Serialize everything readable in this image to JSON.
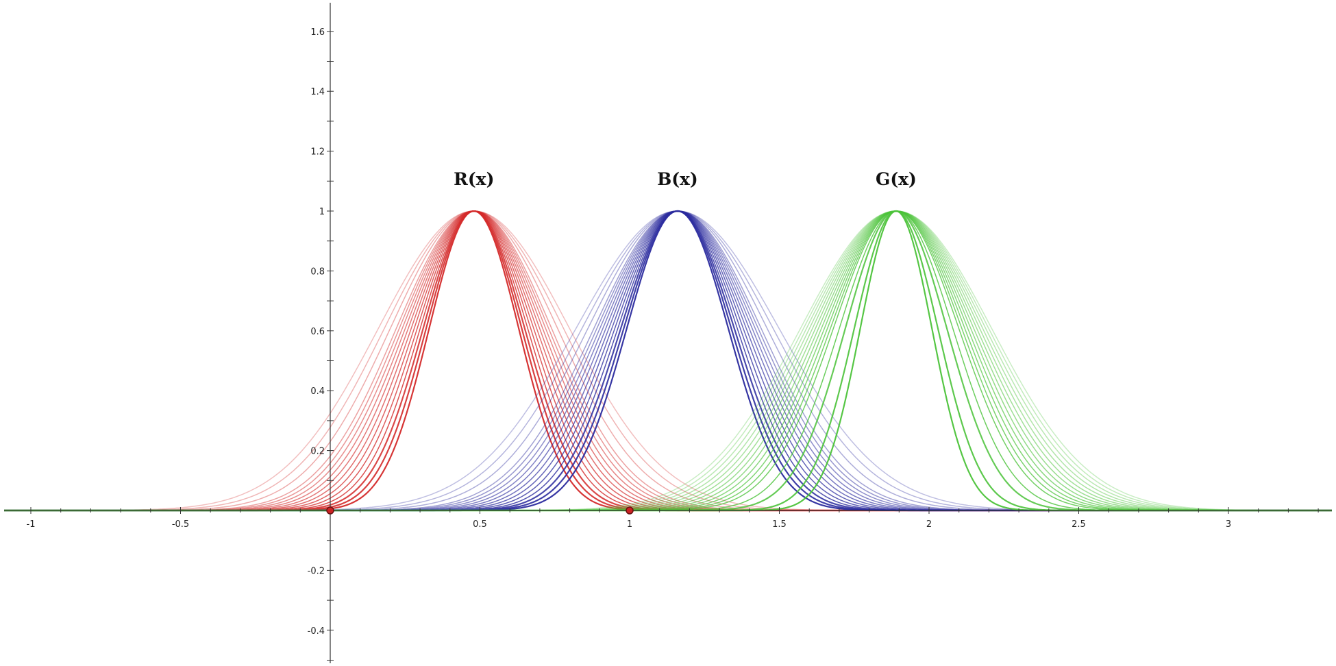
{
  "chart_data": {
    "type": "line",
    "title": "",
    "xlabel": "",
    "ylabel": "",
    "xlim": [
      -1.1,
      3.55
    ],
    "ylim": [
      -0.5,
      1.7
    ],
    "grid": false,
    "x_ticks": [
      -1,
      -0.5,
      0.5,
      1,
      1.5,
      2,
      2.5,
      3
    ],
    "x_tick_labels": [
      "-1",
      "-0.5",
      "0.5",
      "1",
      "1.5",
      "2",
      "2.5",
      "3"
    ],
    "y_ticks": [
      -0.4,
      -0.2,
      0.2,
      0.4,
      0.6,
      0.8,
      1,
      1.2,
      1.4,
      1.6
    ],
    "y_tick_labels": [
      "-0.4",
      "-0.2",
      "0.2",
      "0.4",
      "0.6",
      "0.8",
      "1",
      "1.2",
      "1.4",
      "1.6"
    ],
    "points": [
      {
        "x": 0,
        "y": 0
      },
      {
        "x": 1,
        "y": 0
      }
    ],
    "series": [
      {
        "name": "R(x)",
        "color": "#d42a2a",
        "peak_x": 0.48,
        "peak_y": 1,
        "curve_sigma": [
          0.15,
          0.16,
          0.17,
          0.18,
          0.19,
          0.2,
          0.21,
          0.22,
          0.23,
          0.24,
          0.25,
          0.26,
          0.28,
          0.3,
          0.32
        ]
      },
      {
        "name": "B(x)",
        "color": "#2b2b9e",
        "peak_x": 1.16,
        "peak_y": 1,
        "curve_sigma": [
          0.17,
          0.18,
          0.19,
          0.2,
          0.21,
          0.22,
          0.23,
          0.24,
          0.25,
          0.26,
          0.27,
          0.28,
          0.3,
          0.32,
          0.34
        ]
      },
      {
        "name": "G(x)",
        "color": "#4cc33a",
        "peak_x": 1.89,
        "peak_y": 1,
        "curve_sigma": [
          0.12,
          0.14,
          0.17,
          0.19,
          0.21,
          0.22,
          0.23,
          0.24,
          0.25,
          0.26,
          0.27,
          0.28,
          0.29,
          0.3,
          0.31,
          0.32
        ]
      }
    ]
  }
}
